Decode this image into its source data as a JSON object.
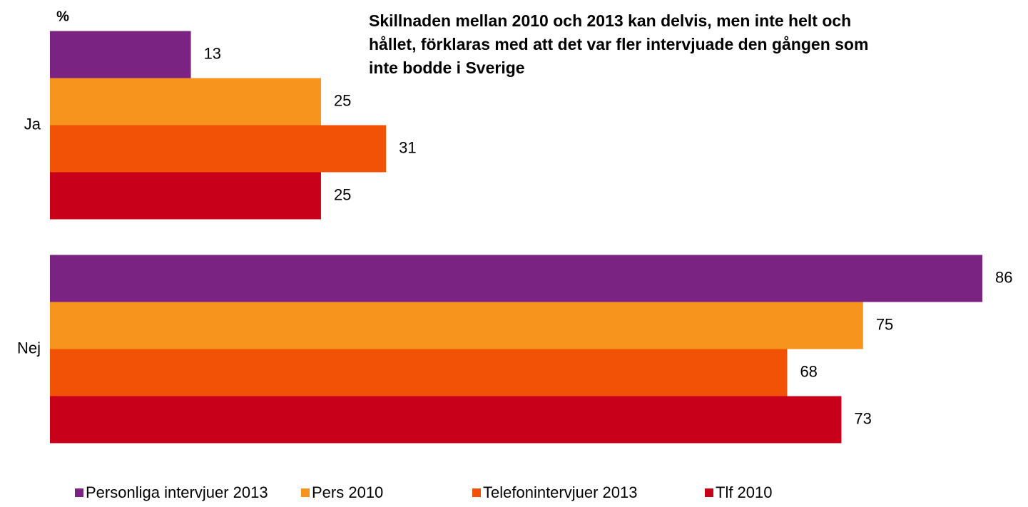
{
  "chart_data": {
    "type": "hbar",
    "title": [
      "Skillnaden mellan 2010 och 2013 kan delvis, men inte helt och",
      "hållet,  förklaras med att det var fler intervjuade den gången som",
      "inte bodde i Sverige"
    ],
    "xlabel": "%",
    "categories": [
      "Ja",
      "Nej"
    ],
    "series": [
      {
        "name": "Personliga intervjuer 2013",
        "color": "#7b2382",
        "values": [
          13,
          86
        ]
      },
      {
        "name": "Pers 2010",
        "color": "#f7941d",
        "values": [
          25,
          75
        ]
      },
      {
        "name": "Telefonintervjuer 2013",
        "color": "#f15206",
        "values": [
          31,
          68
        ]
      },
      {
        "name": "Tlf 2010",
        "color": "#c8001a",
        "values": [
          25,
          73
        ]
      }
    ],
    "xlim": [
      0,
      86
    ],
    "legend": "bottom"
  }
}
